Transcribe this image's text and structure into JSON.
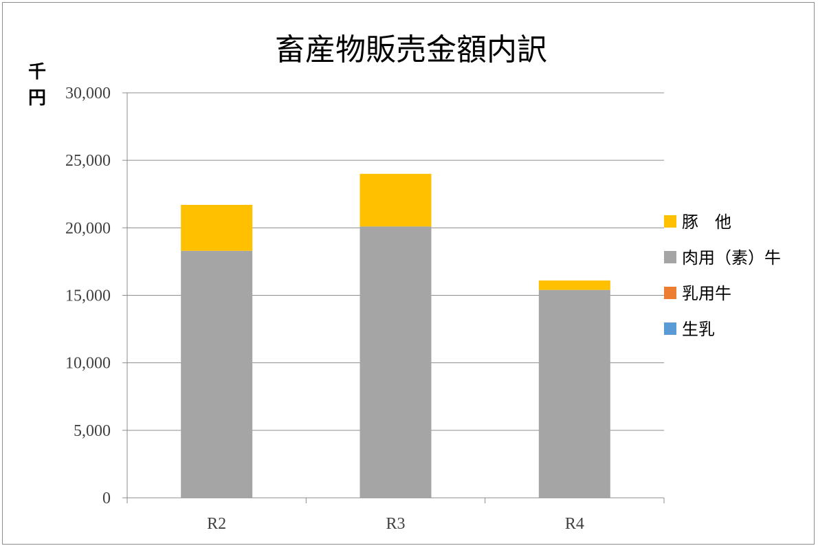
{
  "chart_data": {
    "type": "bar",
    "stacked": true,
    "title": "畜産物販売金額内訳",
    "ylabel": "千円",
    "xlabel": "",
    "categories": [
      "R2",
      "R3",
      "R4"
    ],
    "ylim": [
      0,
      30000
    ],
    "yticks": [
      0,
      5000,
      10000,
      15000,
      20000,
      25000,
      30000
    ],
    "ytick_labels": [
      "0",
      "5,000",
      "10,000",
      "15,000",
      "20,000",
      "25,000",
      "30,000"
    ],
    "grid": true,
    "legend_position": "right",
    "series": [
      {
        "name": "生乳",
        "color": "#5b9bd5",
        "values": [
          0,
          0,
          0
        ]
      },
      {
        "name": "乳用牛",
        "color": "#ed7d31",
        "values": [
          0,
          0,
          0
        ]
      },
      {
        "name": "肉用（素）牛",
        "color": "#a5a5a5",
        "values": [
          18300,
          20100,
          15400
        ]
      },
      {
        "name": "豚　他",
        "color": "#ffc000",
        "values": [
          3400,
          3900,
          700
        ]
      }
    ],
    "legend_order": [
      "豚　他",
      "肉用（素）牛",
      "乳用牛",
      "生乳"
    ]
  }
}
